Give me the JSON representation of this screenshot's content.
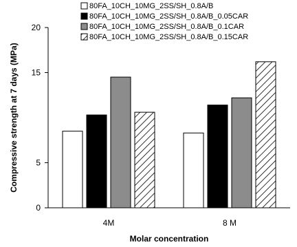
{
  "chart_data": {
    "type": "bar",
    "categories": [
      "4M",
      "8 M"
    ],
    "series": [
      {
        "name": "80FA_10CH_10MG_2SS/SH_0.8A/B",
        "values": [
          8.5,
          8.3
        ],
        "style": "white"
      },
      {
        "name": "80FA_10CH_10MG_2SS/SH_0.8A/B_0.05CAR",
        "values": [
          10.3,
          11.4
        ],
        "style": "black"
      },
      {
        "name": "80FA_10CH_10MG_2SS/SH_0.8A/B_0.1CAR",
        "values": [
          14.5,
          12.2
        ],
        "style": "gray"
      },
      {
        "name": "80FA_10CH_10MG_2SS/SH_0.8A/B_0.15CAR",
        "values": [
          10.6,
          16.2
        ],
        "style": "hatched"
      }
    ],
    "title": "",
    "xlabel": "Molar concentration",
    "ylabel": "Compressive strength at 7 days (MPa)",
    "ylim": [
      0,
      20
    ],
    "yticks": [
      "0",
      "5",
      "15",
      "20"
    ],
    "grid": false,
    "legend_position": "top"
  },
  "colors": {
    "white": "#ffffff",
    "black": "#000000",
    "gray": "#8c8c8c",
    "edge": "#000000"
  }
}
